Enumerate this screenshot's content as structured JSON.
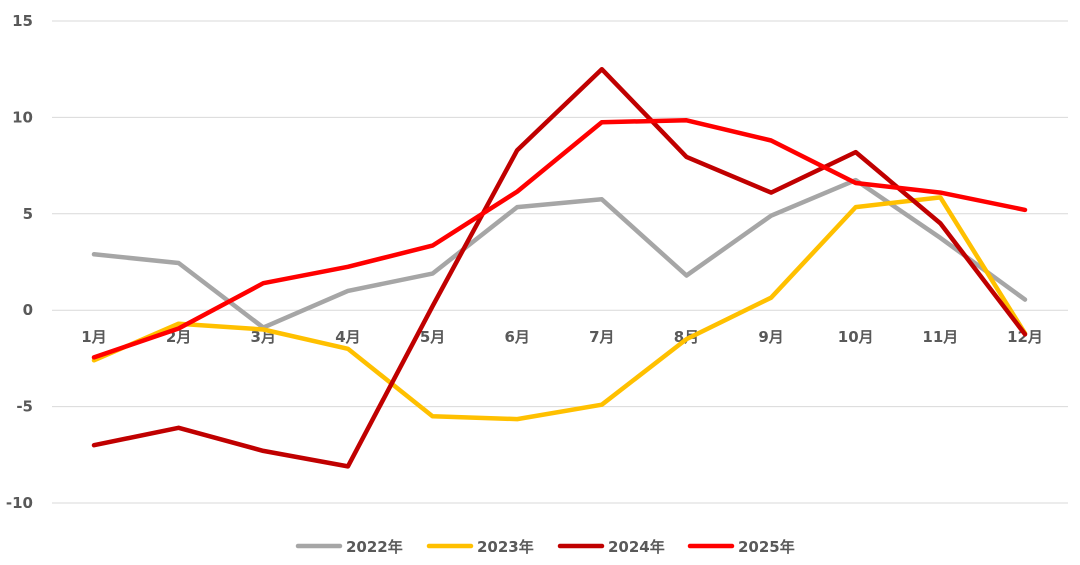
{
  "chart_data": {
    "type": "line",
    "categories": [
      "1月",
      "2月",
      "3月",
      "4月",
      "5月",
      "6月",
      "7月",
      "8月",
      "9月",
      "10月",
      "11月",
      "12月"
    ],
    "yticks": [
      15,
      10,
      5,
      0,
      -5,
      -10
    ],
    "ylim": [
      -10,
      15
    ],
    "grid": true,
    "legend_position": "bottom",
    "series": [
      {
        "name": "2022年",
        "color": "#A6A6A6",
        "values": [
          2.9,
          2.45,
          -0.9,
          1.0,
          1.9,
          5.35,
          5.75,
          1.8,
          4.9,
          6.75,
          3.75,
          0.55
        ]
      },
      {
        "name": "2023年",
        "color": "#FFC000",
        "values": [
          -2.6,
          -0.7,
          -1.0,
          -2.0,
          -5.5,
          -5.65,
          -4.9,
          -1.5,
          0.65,
          5.35,
          5.85,
          -1.2
        ]
      },
      {
        "name": "2024年",
        "color": "#C00000",
        "values": [
          -7.0,
          -6.1,
          -7.3,
          -8.1,
          0.2,
          8.3,
          12.5,
          7.95,
          6.1,
          8.2,
          4.5,
          -1.25
        ]
      },
      {
        "name": "2025年",
        "color": "#FF0000",
        "values": [
          -2.45,
          -0.95,
          1.4,
          2.25,
          3.35,
          6.15,
          9.75,
          9.85,
          8.8,
          6.6,
          6.1,
          5.2
        ]
      }
    ]
  }
}
